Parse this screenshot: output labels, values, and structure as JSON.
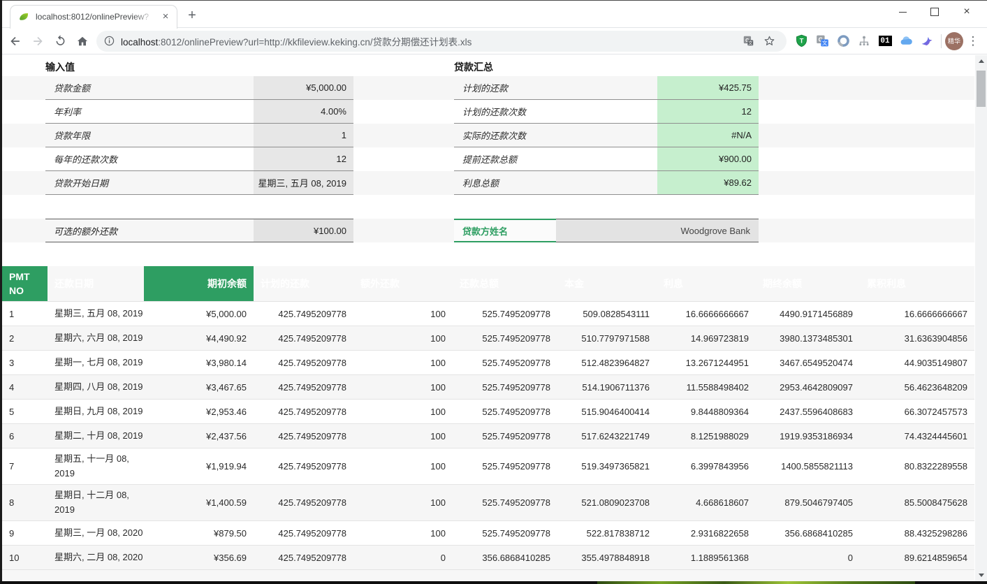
{
  "browser": {
    "tab": {
      "title": "localhost:8012/onlinePreview?",
      "close_glyph": "×"
    },
    "new_tab_glyph": "+",
    "address_bar": {
      "host": "localhost",
      "rest": ":8012/onlinePreview?url=http://kkfileview.keking.cn/贷款分期偿还计划表.xls"
    },
    "extension_badge": "01",
    "profile_label": "精华",
    "menu_glyph": "⋮",
    "icons": {
      "favicon": "green-leaf",
      "back": "left-arrow",
      "forward": "right-arrow",
      "reload": "circular-arrow",
      "home": "house",
      "page-info": "info-circle",
      "page-translate": "translate-card",
      "bookmark": "star-outline",
      "ext1": "green-shield-T",
      "ext2": "google-translate",
      "ext3": "blue-ring",
      "ext4": "gray-sitemap",
      "ext5": "black-01-badge",
      "ext6": "blue-cloud",
      "ext7": "blue-bird",
      "window": [
        "minimize",
        "maximize",
        "close"
      ]
    }
  },
  "colors": {
    "accent_green": "#2e9e62",
    "summary_cell_green": "#c6efce",
    "input_cell_gray": "#e7e7e7",
    "stripe_gray": "#f6f6f6",
    "table_header_text": "#ffffff"
  },
  "sheet": {
    "inputs": {
      "title": "输入值",
      "rows": [
        {
          "label": "贷款金额",
          "value": "¥5,000.00"
        },
        {
          "label": "年利率",
          "value": "4.00%"
        },
        {
          "label": "贷款年限",
          "value": "1"
        },
        {
          "label": "每年的还款次数",
          "value": "12"
        },
        {
          "label": "贷款开始日期",
          "value": "星期三, 五月 08, 2019"
        }
      ],
      "extra": {
        "label": "可选的额外还款",
        "value": "¥100.00"
      }
    },
    "summary": {
      "title": "贷款汇总",
      "rows": [
        {
          "label": "计划的还款",
          "value": "¥425.75"
        },
        {
          "label": "计划的还款次数",
          "value": "12"
        },
        {
          "label": "实际的还款次数",
          "value": "#N/A"
        },
        {
          "label": "提前还款总额",
          "value": "¥900.00"
        },
        {
          "label": "利息总额",
          "value": "¥89.62"
        }
      ],
      "lender": {
        "label": "贷款方姓名",
        "value": "Woodgrove Bank"
      }
    },
    "amortization": {
      "headers": [
        "PMT NO",
        "还款日期",
        "期初余额",
        "计划的还款",
        "额外还款",
        "还款总额",
        "本金",
        "利息",
        "期终余额",
        "累积利息"
      ],
      "rows": [
        [
          "1",
          "星期三, 五月 08, 2019",
          "¥5,000.00",
          "425.7495209778",
          "100",
          "525.7495209778",
          "509.0828543111",
          "16.6666666667",
          "4490.9171456889",
          "16.6666666667"
        ],
        [
          "2",
          "星期六, 六月 08, 2019",
          "¥4,490.92",
          "425.7495209778",
          "100",
          "525.7495209778",
          "510.7797971588",
          "14.969723819",
          "3980.1373485301",
          "31.6363904856"
        ],
        [
          "3",
          "星期一, 七月 08, 2019",
          "¥3,980.14",
          "425.7495209778",
          "100",
          "525.7495209778",
          "512.4823964827",
          "13.2671244951",
          "3467.6549520474",
          "44.9035149807"
        ],
        [
          "4",
          "星期四, 八月 08, 2019",
          "¥3,467.65",
          "425.7495209778",
          "100",
          "525.7495209778",
          "514.1906711376",
          "11.5588498402",
          "2953.4642809097",
          "56.4623648209"
        ],
        [
          "5",
          "星期日, 九月 08, 2019",
          "¥2,953.46",
          "425.7495209778",
          "100",
          "525.7495209778",
          "515.9046400414",
          "9.8448809364",
          "2437.5596408683",
          "66.3072457573"
        ],
        [
          "6",
          "星期二, 十月 08, 2019",
          "¥2,437.56",
          "425.7495209778",
          "100",
          "525.7495209778",
          "517.6243221749",
          "8.1251988029",
          "1919.9353186934",
          "74.4324445601"
        ],
        [
          "7",
          "星期五, 十一月 08,\n2019",
          "¥1,919.94",
          "425.7495209778",
          "100",
          "525.7495209778",
          "519.3497365821",
          "6.3997843956",
          "1400.5855821113",
          "80.8322289558"
        ],
        [
          "8",
          "星期日, 十二月 08,\n2019",
          "¥1,400.59",
          "425.7495209778",
          "100",
          "525.7495209778",
          "521.0809023708",
          "4.668618607",
          "879.5046797405",
          "85.5008475628"
        ],
        [
          "9",
          "星期三, 一月 08, 2020",
          "¥879.50",
          "425.7495209778",
          "100",
          "525.7495209778",
          "522.817838712",
          "2.9316822658",
          "356.6868410285",
          "88.4325298286"
        ],
        [
          "10",
          "星期六, 二月 08, 2020",
          "¥356.69",
          "425.7495209778",
          "0",
          "356.6868410285",
          "355.4978848918",
          "1.1889561368",
          "0",
          "89.6214859654"
        ]
      ]
    }
  }
}
